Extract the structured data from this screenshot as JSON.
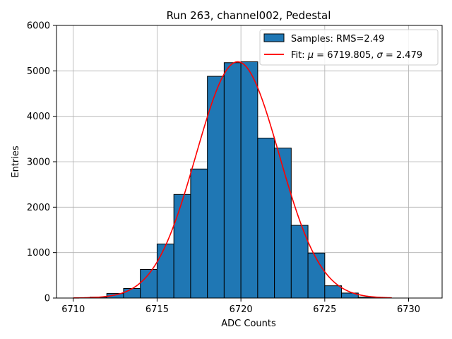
{
  "chart_data": {
    "type": "bar",
    "title": "Run 263, channel002, Pedestal",
    "xlabel": "ADC Counts",
    "ylabel": "Entries",
    "xlim": [
      6709,
      6732
    ],
    "ylim": [
      0,
      6000
    ],
    "xticks": [
      6710,
      6715,
      6720,
      6725,
      6730
    ],
    "yticks": [
      0,
      1000,
      2000,
      3000,
      4000,
      5000,
      6000
    ],
    "grid": true,
    "legend_position": "top-right",
    "series": [
      {
        "name": "Samples: RMS=2.49",
        "kind": "histogram",
        "color": "#1f77b4",
        "edgecolor": "#000000",
        "bins": [
          {
            "x0": 6710,
            "x1": 6711,
            "value": 0
          },
          {
            "x0": 6711,
            "x1": 6712,
            "value": 20
          },
          {
            "x0": 6712,
            "x1": 6713,
            "value": 100
          },
          {
            "x0": 6713,
            "x1": 6714,
            "value": 210
          },
          {
            "x0": 6714,
            "x1": 6715,
            "value": 630
          },
          {
            "x0": 6715,
            "x1": 6716,
            "value": 1190
          },
          {
            "x0": 6716,
            "x1": 6717,
            "value": 2280
          },
          {
            "x0": 6717,
            "x1": 6718,
            "value": 2840
          },
          {
            "x0": 6718,
            "x1": 6719,
            "value": 4880
          },
          {
            "x0": 6719,
            "x1": 6720,
            "value": 5180
          },
          {
            "x0": 6720,
            "x1": 6721,
            "value": 5200
          },
          {
            "x0": 6721,
            "x1": 6722,
            "value": 3520
          },
          {
            "x0": 6722,
            "x1": 6723,
            "value": 3300
          },
          {
            "x0": 6723,
            "x1": 6724,
            "value": 1600
          },
          {
            "x0": 6724,
            "x1": 6725,
            "value": 990
          },
          {
            "x0": 6725,
            "x1": 6726,
            "value": 270
          },
          {
            "x0": 6726,
            "x1": 6727,
            "value": 110
          },
          {
            "x0": 6727,
            "x1": 6728,
            "value": 20
          },
          {
            "x0": 6728,
            "x1": 6729,
            "value": 0
          }
        ]
      },
      {
        "name": "Fit: μ = 6719.805, σ = 2.479",
        "name_parts": [
          "Fit: ",
          "μ",
          " = 6719.805, ",
          "σ",
          " = 2.479"
        ],
        "kind": "gaussian",
        "color": "#ff0000",
        "mu": 6719.805,
        "sigma": 2.479,
        "amplitude": 5200,
        "x_range": [
          6710,
          6729
        ]
      }
    ]
  }
}
